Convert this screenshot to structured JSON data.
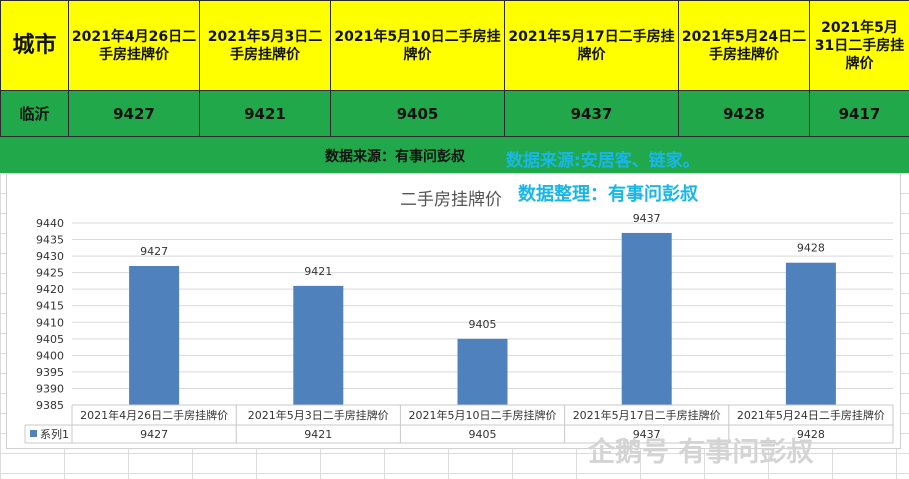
{
  "table": {
    "city_header": "城市",
    "date_headers": [
      "2021年4月26日二手房挂牌价",
      "2021年5月3日二手房挂牌价",
      "2021年5月10日二手房挂牌价",
      "2021年5月17日二手房挂牌价",
      "2021年5月24日二手房挂牌价",
      "2021年5月31日二手房挂牌价"
    ],
    "city": "临沂",
    "values": [
      "9427",
      "9421",
      "9405",
      "9437",
      "9428",
      "9417"
    ]
  },
  "source_note": "数据来源：有事问彭叔",
  "overlay_source": "数据来源:安居客、链家。",
  "overlay_editor": "数据整理：有事问彭叔",
  "watermark": "企鹅号 有事问彭叔",
  "colors": {
    "header_bg": "#ffff00",
    "row_bg": "#21a84a",
    "bar": "#4f81bd",
    "overlay_text": "#1ab6e8"
  },
  "chart_data": {
    "type": "bar",
    "title": "二手房挂牌价",
    "categories": [
      "2021年4月26日二手房挂牌价",
      "2021年5月3日二手房挂牌价",
      "2021年5月10日二手房挂牌价",
      "2021年5月17日二手房挂牌价",
      "2021年5月24日二手房挂牌价"
    ],
    "series": [
      {
        "name": "系列1",
        "values": [
          9427,
          9421,
          9405,
          9437,
          9428
        ]
      }
    ],
    "ylim": [
      9385,
      9440
    ],
    "yticks": [
      9440,
      9435,
      9430,
      9425,
      9420,
      9415,
      9410,
      9405,
      9400,
      9395,
      9390,
      9385
    ],
    "data_table": true,
    "legend": "data-table"
  }
}
